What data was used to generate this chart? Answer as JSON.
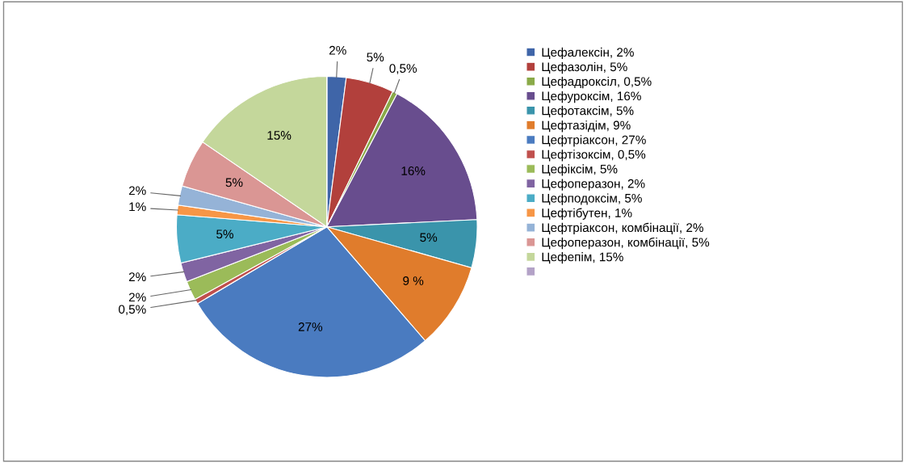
{
  "chart_data": {
    "type": "pie",
    "categories": [
      "Цефалексін, 2%",
      "Цефазолін, 5%",
      "Цефадроксіл, 0,5%",
      "Цефуроксім, 16%",
      "Цефотаксім, 5%",
      "Цефтазідім, 9%",
      "Цефтріаксон, 27%",
      "Цефтізоксім, 0,5%",
      "Цефіксім, 5%",
      "Цефоперазон, 2%",
      "Цефподоксім, 5%",
      "Цефтібутен, 1%",
      "Цефтріаксон, комбінації, 2%",
      "Цефоперазон, комбінації, 5%",
      "Цефепім, 15%",
      null
    ],
    "values": [
      2,
      5,
      0.5,
      16,
      5,
      9,
      27,
      0.5,
      2,
      2,
      5,
      1,
      2,
      5,
      15,
      0
    ],
    "value_labels": [
      "2%",
      "5%",
      "0,5%",
      "16%",
      "5%",
      "9 %",
      "27%",
      "0,5%",
      "2%",
      "2%",
      "5%",
      "1%",
      "2%",
      "5%",
      "15%",
      null
    ],
    "colors": [
      "#3f65a8",
      "#b2403c",
      "#8aaa48",
      "#684d8e",
      "#3a94ab",
      "#e07c2c",
      "#4a7bc0",
      "#c0504d",
      "#9bbb59",
      "#8064a2",
      "#4bacc6",
      "#f79646",
      "#95b3d7",
      "#da9694",
      "#c4d79b",
      "#b3a2c7"
    ],
    "legend": "right"
  }
}
